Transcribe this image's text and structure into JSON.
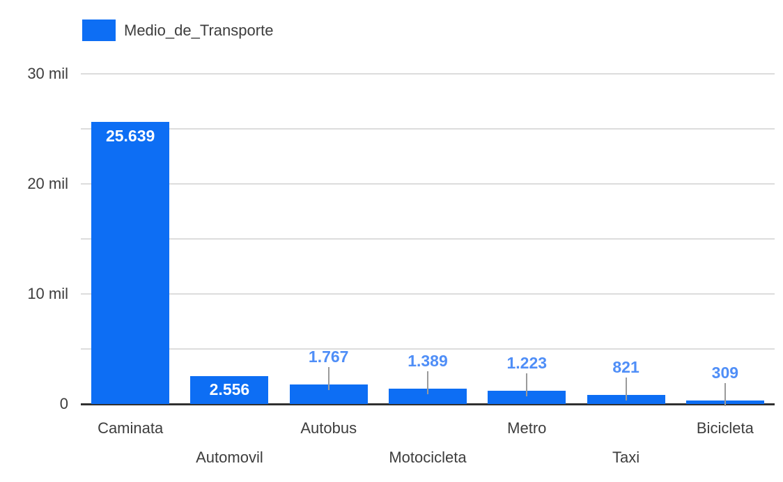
{
  "chart_data": {
    "type": "bar",
    "title": "",
    "legend": "Medio_de_Transporte",
    "legend_position": "top-left",
    "categories": [
      "Caminata",
      "Automovil",
      "Autobus",
      "Motocicleta",
      "Metro",
      "Taxi",
      "Bicicleta"
    ],
    "values": [
      25639,
      2556,
      1767,
      1389,
      1223,
      821,
      309
    ],
    "value_labels": [
      "25.639",
      "2.556",
      "1.767",
      "1.389",
      "1.223",
      "821",
      "309"
    ],
    "xlabel": "",
    "ylabel": "",
    "ylim": [
      0,
      30000
    ],
    "y_ticks": [
      {
        "value": 0,
        "label": "0"
      },
      {
        "value": 10000,
        "label": "10 mil"
      },
      {
        "value": 20000,
        "label": "20 mil"
      },
      {
        "value": 30000,
        "label": "30 mil"
      }
    ],
    "y_minor_gridline_step": 5000,
    "grid": true,
    "colors": {
      "bar": "#0d6ef4",
      "annotation_inside": "#ffffff",
      "annotation_outside": "#4f8ef7",
      "stem": "#9a9a9a",
      "gridline": "#dcdcdc",
      "baseline": "#303030",
      "axis_text": "#3d3d3d",
      "legend_text": "#3d3d3d",
      "background": "#ffffff"
    }
  }
}
